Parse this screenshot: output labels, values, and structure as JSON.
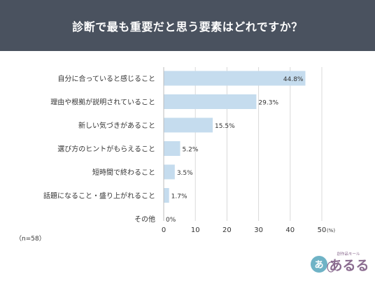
{
  "header": {
    "title": "診断で最も重要だと思う要素はどれですか？"
  },
  "note": "（n=58）",
  "logo": {
    "sub": "創作品モール",
    "main": "あるる",
    "badge": "あ",
    "color": "#8a6b8f"
  },
  "colors": {
    "banner": "#4a525f",
    "bar": "#c5dcee",
    "grid": "#d9d9d9"
  },
  "chart_data": {
    "type": "bar",
    "orientation": "horizontal",
    "categories": [
      "自分に合っていると感じること",
      "理由や根拠が説明されていること",
      "新しい気づきがあること",
      "選び方のヒントがもらえること",
      "短時間で終わること",
      "話題になること・盛り上がれること",
      "その他"
    ],
    "values": [
      44.8,
      29.3,
      15.5,
      5.2,
      3.5,
      1.7,
      0
    ],
    "value_labels": [
      "44.8%",
      "29.3%",
      "15.5%",
      "5.2%",
      "3.5%",
      "1.7%",
      "0%"
    ],
    "xticks": [
      "0",
      "10",
      "20",
      "30",
      "40",
      "50"
    ],
    "xlim": [
      0,
      50
    ],
    "x_unit": "(%)",
    "grid": true
  }
}
